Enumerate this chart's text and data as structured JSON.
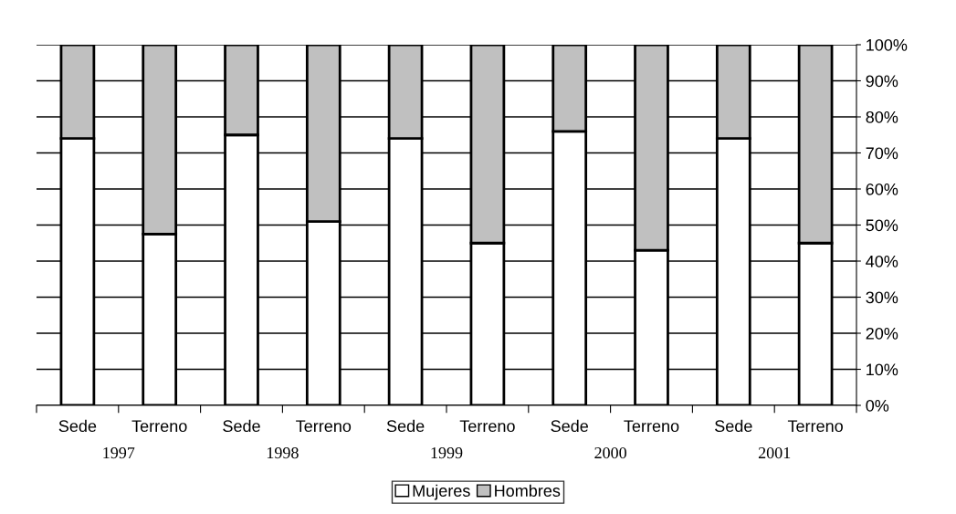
{
  "chart_data": {
    "type": "bar",
    "stacked": true,
    "categories": [
      "Sede",
      "Terreno",
      "Sede",
      "Terreno",
      "Sede",
      "Terreno",
      "Sede",
      "Terreno",
      "Sede",
      "Terreno"
    ],
    "series": [
      {
        "name": "Mujeres",
        "color": "#ffffff",
        "values": [
          74,
          47.5,
          75,
          51,
          74,
          45,
          76,
          43,
          74,
          45
        ]
      },
      {
        "name": "Hombres",
        "color": "#c0c0c0",
        "values": [
          26,
          52.5,
          25,
          49,
          26,
          55,
          24,
          57,
          26,
          55
        ]
      }
    ],
    "annotations": [
      "1997",
      "1998",
      "1999",
      "2000",
      "2001"
    ],
    "ylim": [
      0,
      100
    ],
    "yticks": [
      {
        "value": 0,
        "label": "0%"
      },
      {
        "value": 10,
        "label": "10%"
      },
      {
        "value": 20,
        "label": "20%"
      },
      {
        "value": 30,
        "label": "30%"
      },
      {
        "value": 40,
        "label": "40%"
      },
      {
        "value": 50,
        "label": "50%"
      },
      {
        "value": 60,
        "label": "60%"
      },
      {
        "value": 70,
        "label": "70%"
      },
      {
        "value": 80,
        "label": "80%"
      },
      {
        "value": 90,
        "label": "90%"
      },
      {
        "value": 100,
        "label": "100%"
      }
    ],
    "grid": "y",
    "legend": "bottom"
  }
}
